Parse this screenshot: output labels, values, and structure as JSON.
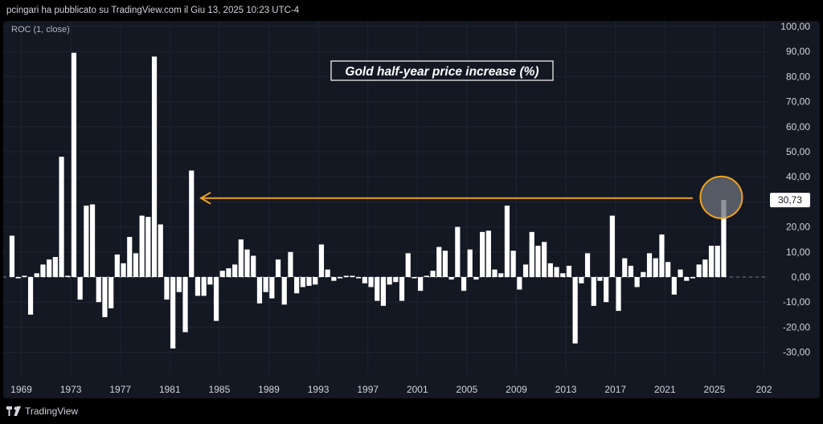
{
  "header": {
    "text": "pcingari ha pubblicato su TradingView.com il Giu 13, 2025 10:23 UTC-4"
  },
  "indicator": {
    "label": "ROC (1, close)"
  },
  "footer": {
    "brand": "TradingView"
  },
  "colors": {
    "background": "#141823",
    "bar": "#ffffff",
    "arrow": "#f0a31a",
    "circle_fill": "#555a66",
    "grid": "#1f2433"
  },
  "chart_data": {
    "type": "bar",
    "title": "Gold half-year price increase (%)",
    "xlabel": "",
    "ylabel": "",
    "ylim": [
      -35,
      105
    ],
    "x_tick_labels": [
      "1969",
      "1973",
      "1977",
      "1981",
      "1985",
      "1989",
      "1993",
      "1997",
      "2001",
      "2005",
      "2009",
      "2013",
      "2017",
      "2021",
      "2025",
      "202"
    ],
    "y_tick_labels": [
      "100,00",
      "90,00",
      "80,00",
      "70,00",
      "60,00",
      "50,00",
      "40,00",
      "30,00",
      "20,00",
      "10,00",
      "0,00",
      "-10,00",
      "-20,00",
      "-30,00"
    ],
    "last_value_label": "30,73",
    "start_year": 1968.25,
    "period_years": 0.5,
    "values": [
      16.5,
      -0.5,
      0.5,
      -15,
      1.5,
      5,
      7,
      8,
      48,
      0.5,
      89.5,
      -9,
      28.5,
      29,
      -10,
      -16,
      -12.5,
      9,
      5.5,
      16,
      9.5,
      24.5,
      24,
      88,
      21,
      -9,
      -28.5,
      -6,
      -22,
      42.5,
      -7.5,
      -7.5,
      -3,
      -17.5,
      2.5,
      3.5,
      5,
      15,
      11,
      8.5,
      -10.5,
      -6,
      -8.5,
      7,
      -11,
      10,
      -6.5,
      -4,
      -3.5,
      -3,
      13,
      3,
      -1.5,
      -0.5,
      0.5,
      0.5,
      -0.5,
      -2.5,
      -4,
      -9.5,
      -11.5,
      -3,
      -2,
      -9.5,
      9.5,
      -0.5,
      -5.5,
      0.5,
      2.5,
      12,
      10.5,
      -1,
      20,
      -5.5,
      11,
      -1,
      18,
      18.5,
      3,
      1.5,
      28.5,
      10.5,
      -5,
      5,
      18,
      12.5,
      14,
      5.5,
      4,
      1.5,
      4.5,
      -26.5,
      -2.5,
      9.5,
      -11.5,
      -1.5,
      -10,
      24.5,
      -13.5,
      7.5,
      4.5,
      -4,
      2,
      9.5,
      7.5,
      17,
      6,
      -7,
      3,
      -1.5,
      -0.5,
      5,
      7,
      12.5,
      12.5,
      30.73
    ]
  }
}
